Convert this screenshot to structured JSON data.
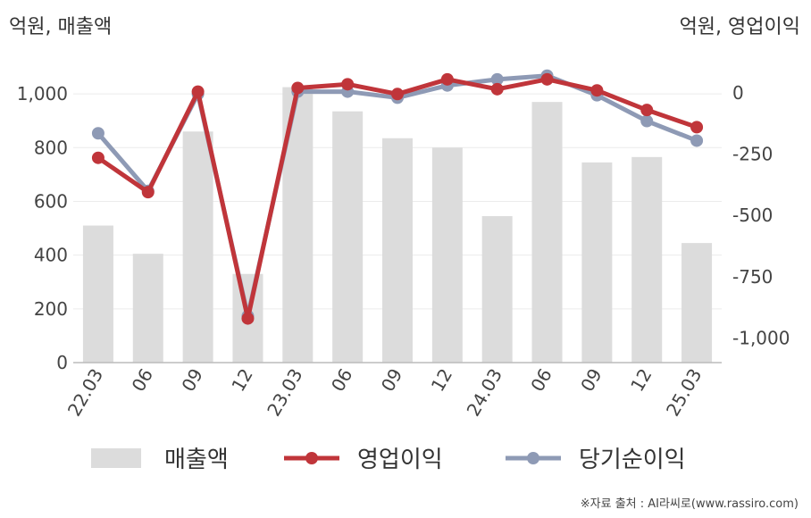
{
  "chart_data": {
    "type": "bar",
    "title": "",
    "left_axis_unit": "억원, 매출액",
    "right_axis_unit": "억원, 영업이익",
    "categories": [
      "22.03",
      "06",
      "09",
      "12",
      "23.03",
      "06",
      "09",
      "12",
      "24.03",
      "06",
      "09",
      "12",
      "25.03"
    ],
    "left_ylim": [
      0,
      1150
    ],
    "left_ticks": [
      0,
      200,
      400,
      600,
      800,
      1000
    ],
    "left_tick_labels": [
      "0",
      "200",
      "400",
      "600",
      "800",
      "1,000"
    ],
    "right_ylim": [
      -1100,
      160
    ],
    "right_ticks": [
      0,
      -250,
      -500,
      -750,
      -1000
    ],
    "right_tick_labels": [
      "0",
      "-250",
      "-500",
      "-750",
      "-1,000"
    ],
    "series": [
      {
        "name": "매출액",
        "kind": "bar",
        "axis": "left",
        "color": "#dcdcdc",
        "values": [
          510,
          405,
          860,
          330,
          1025,
          935,
          835,
          800,
          545,
          970,
          745,
          765,
          445
        ]
      },
      {
        "name": "영업이익",
        "kind": "line",
        "axis": "right",
        "color": "#c0353a",
        "values": [
          -265,
          -405,
          5,
          -920,
          20,
          35,
          -5,
          55,
          15,
          55,
          10,
          -70,
          -140
        ]
      },
      {
        "name": "당기순이익",
        "kind": "line",
        "axis": "right",
        "color": "#8e9ab5",
        "values": [
          -165,
          -400,
          -5,
          -910,
          5,
          5,
          -20,
          30,
          55,
          70,
          -10,
          -115,
          -195
        ]
      }
    ],
    "legend_position": "bottom",
    "grid": true
  },
  "source": "※자료 출처 : AI라씨로(www.rassiro.com)"
}
